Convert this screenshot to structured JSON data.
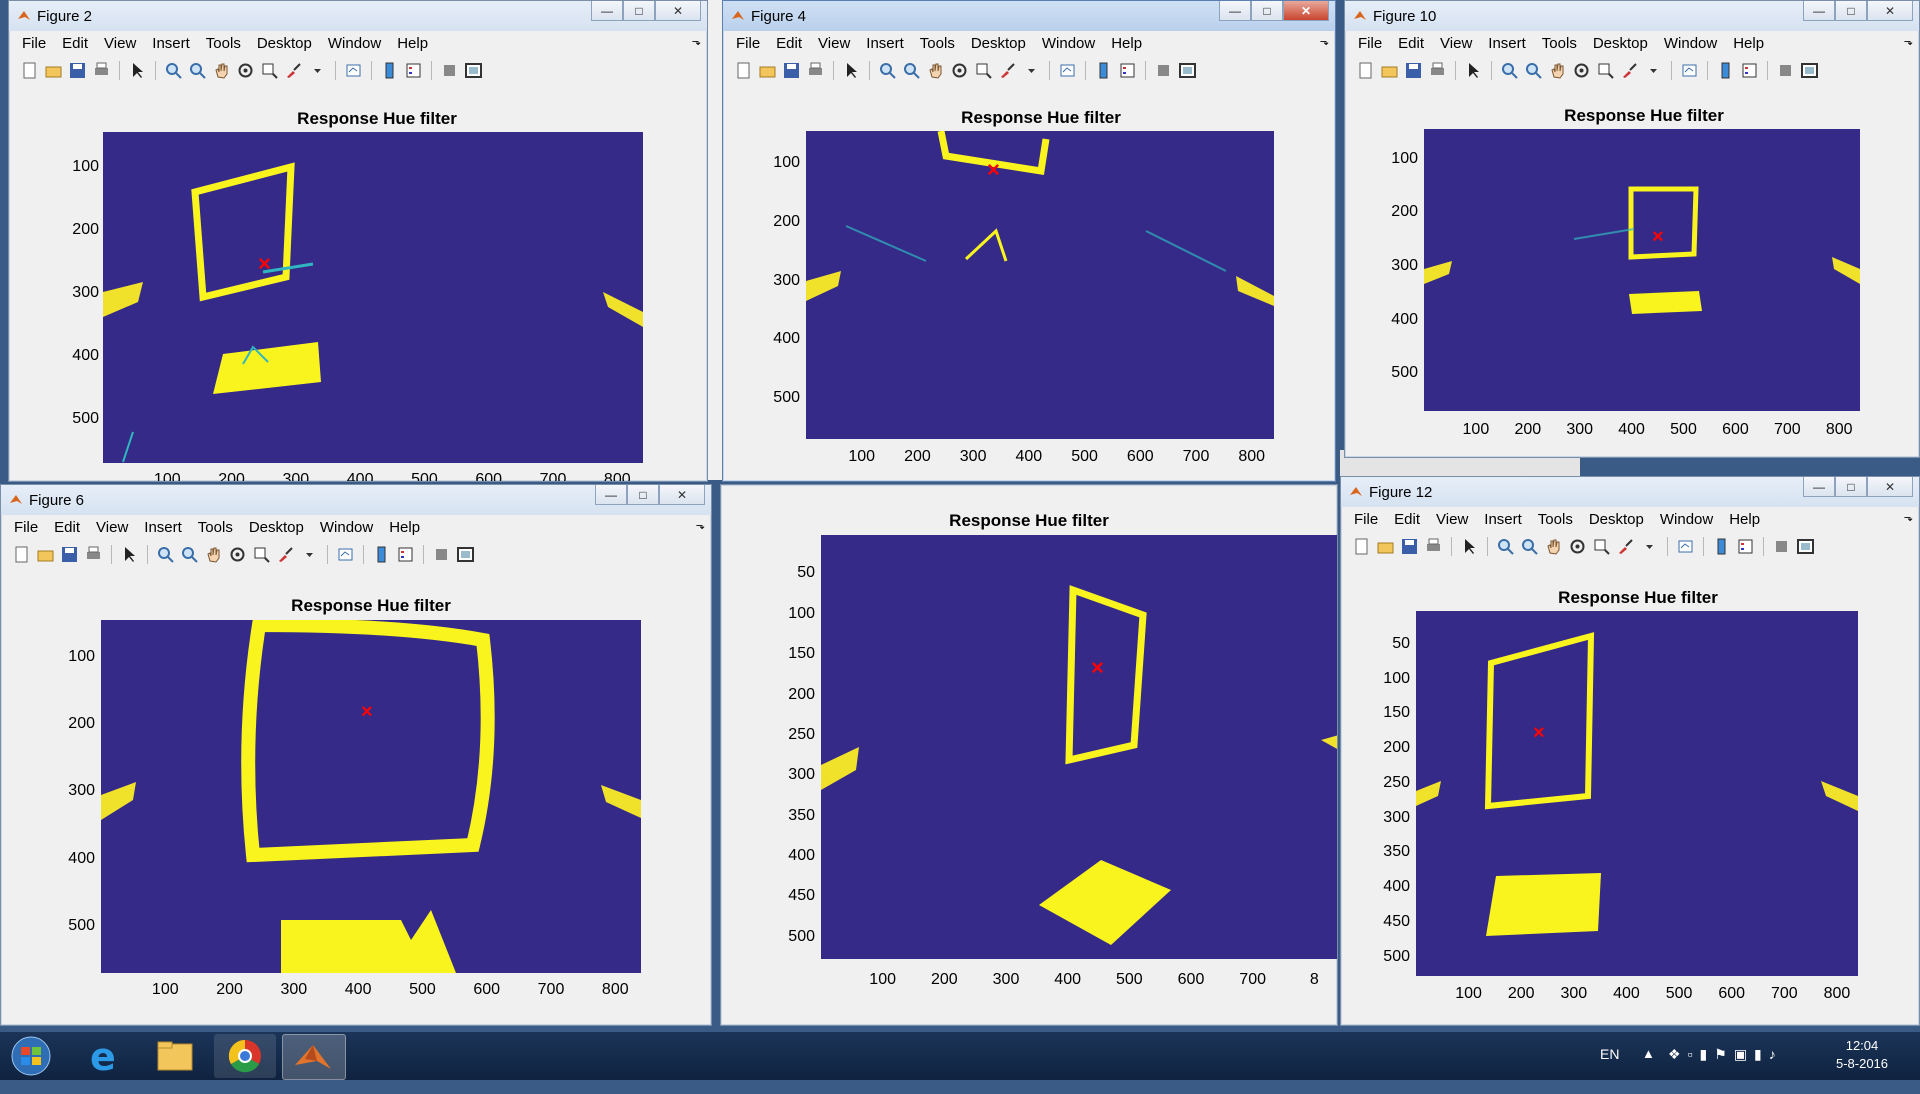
{
  "menu": [
    "File",
    "Edit",
    "View",
    "Insert",
    "Tools",
    "Desktop",
    "Window",
    "Help"
  ],
  "colors": {
    "plot_bg": "#352a87",
    "yellow": "#f9f41e",
    "cyan": "#30b6c0",
    "marker": "#ff0000"
  },
  "figures": [
    {
      "key": "f2",
      "window_title": "Figure 2",
      "axes_title": "Response Hue filter",
      "y_ticks": [
        "100",
        "200",
        "300",
        "400",
        "500"
      ],
      "x_ticks": [
        "100",
        "200",
        "300",
        "400",
        "500",
        "600",
        "700",
        "800"
      ]
    },
    {
      "key": "f4",
      "window_title": "Figure 4",
      "axes_title": "Response Hue filter",
      "y_ticks": [
        "100",
        "200",
        "300",
        "400",
        "500"
      ],
      "x_ticks": [
        "100",
        "200",
        "300",
        "400",
        "500",
        "600",
        "700",
        "800"
      ]
    },
    {
      "key": "f10",
      "window_title": "Figure 10",
      "axes_title": "Response Hue filter",
      "y_ticks": [
        "100",
        "200",
        "300",
        "400",
        "500"
      ],
      "x_ticks": [
        "100",
        "200",
        "300",
        "400",
        "500",
        "600",
        "700",
        "800"
      ]
    },
    {
      "key": "f6",
      "window_title": "Figure 6",
      "axes_title": "Response Hue filter",
      "y_ticks": [
        "100",
        "200",
        "300",
        "400",
        "500"
      ],
      "x_ticks": [
        "100",
        "200",
        "300",
        "400",
        "500",
        "600",
        "700",
        "800"
      ]
    },
    {
      "key": "fc",
      "window_title": "",
      "axes_title": "Response Hue filter",
      "y_ticks": [
        "50",
        "100",
        "150",
        "200",
        "250",
        "300",
        "350",
        "400",
        "450",
        "500"
      ],
      "x_ticks": [
        "100",
        "200",
        "300",
        "400",
        "500",
        "600",
        "700",
        "8"
      ]
    },
    {
      "key": "f12",
      "window_title": "Figure 12",
      "axes_title": "Response Hue filter",
      "y_ticks": [
        "50",
        "100",
        "150",
        "200",
        "250",
        "300",
        "350",
        "400",
        "450",
        "500"
      ],
      "x_ticks": [
        "100",
        "200",
        "300",
        "400",
        "500",
        "600",
        "700",
        "800"
      ]
    }
  ],
  "taskbar": {
    "language": "EN",
    "time": "12:04",
    "date": "5-8-2016"
  },
  "icons": [
    "windows-start-icon",
    "internet-explorer-icon",
    "file-explorer-icon",
    "chrome-icon",
    "matlab-icon"
  ]
}
